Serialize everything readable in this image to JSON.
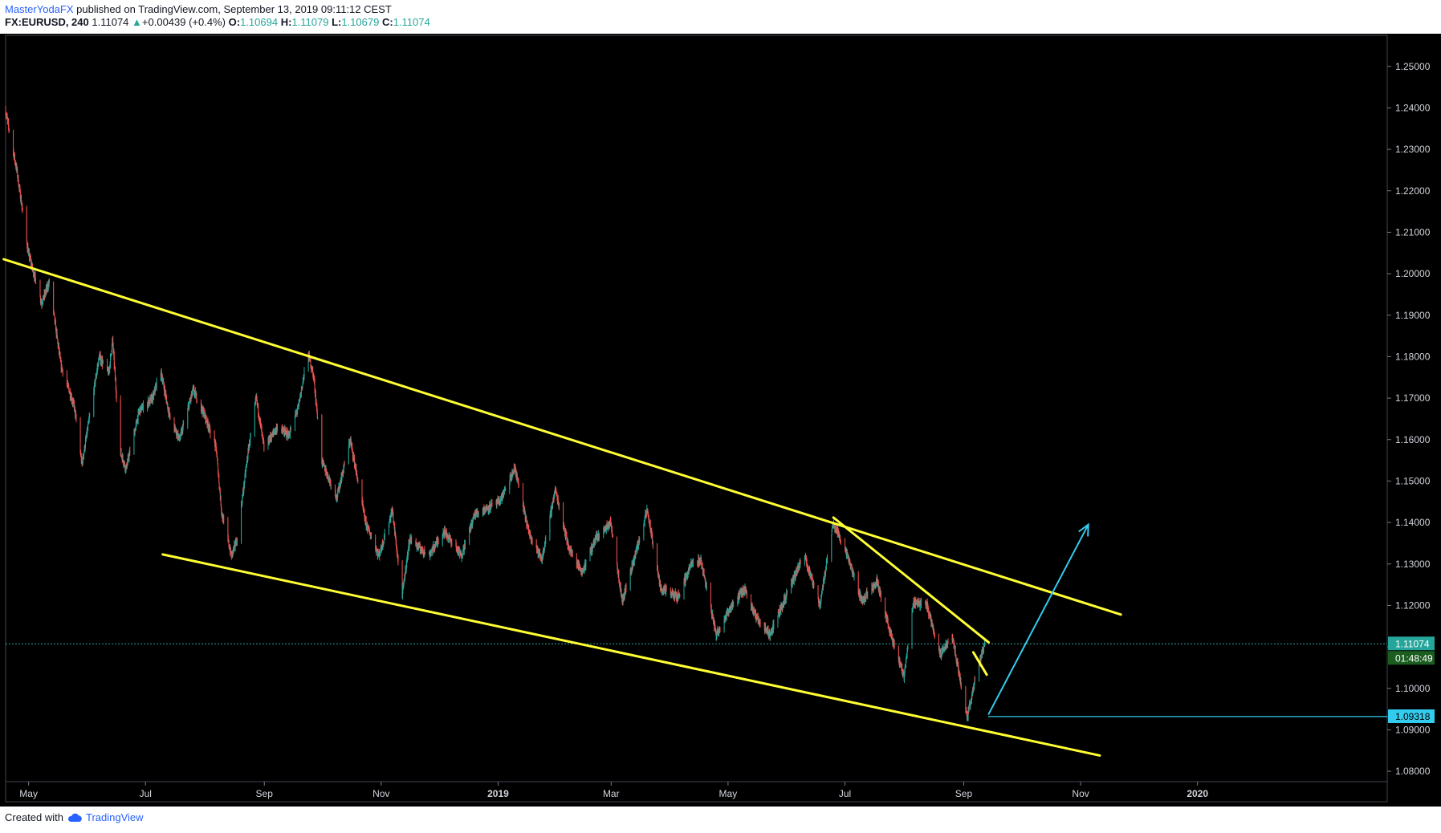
{
  "header": {
    "author": "MasterYodaFX",
    "published_text": " published on TradingView.com, September 13, 2019 09:11:12 CEST",
    "symbol": "FX:EURUSD, 240",
    "last": "1.11074",
    "change": "+0.00439 (+0.4%)",
    "open_label": "O:",
    "open": "1.10694",
    "high_label": "H:",
    "high": "1.11079",
    "low_label": "L:",
    "low": "1.10679",
    "close_label": "C:",
    "close": "1.11074"
  },
  "footer": {
    "created_with": "Created with",
    "brand": "TradingView",
    "logo_icon": "tradingview-cloud-icon"
  },
  "colors": {
    "background": "#000000",
    "candle_up": "#26a69a",
    "candle_down": "#ef5350",
    "trendline": "#ffff33",
    "projection": "#33ccee",
    "price_line": "#26a69a",
    "axis_text": "#d1d4dc"
  },
  "chart_data": {
    "type": "candlestick",
    "y_axis": {
      "ticks": [
        "1.25000",
        "1.24000",
        "1.23000",
        "1.22000",
        "1.21000",
        "1.20000",
        "1.19000",
        "1.18000",
        "1.17000",
        "1.16000",
        "1.15000",
        "1.14000",
        "1.13000",
        "1.12000",
        "1.11000",
        "1.10000",
        "1.09000",
        "1.08000"
      ],
      "range": [
        1.0775,
        1.2575
      ]
    },
    "x_axis": {
      "range": [
        "2018-04-19",
        "2020-04-09"
      ],
      "ticks": [
        {
          "label": "May",
          "date": "2018-05-01"
        },
        {
          "label": "Jul",
          "date": "2018-07-01"
        },
        {
          "label": "Sep",
          "date": "2018-09-01"
        },
        {
          "label": "Nov",
          "date": "2018-11-01"
        },
        {
          "label": "2019",
          "date": "2019-01-01",
          "bold": true
        },
        {
          "label": "Mar",
          "date": "2019-03-01"
        },
        {
          "label": "May",
          "date": "2019-05-01"
        },
        {
          "label": "Jul",
          "date": "2019-07-01"
        },
        {
          "label": "Sep",
          "date": "2019-09-01"
        },
        {
          "label": "Nov",
          "date": "2019-11-01"
        },
        {
          "label": "2020",
          "date": "2020-01-01",
          "bold": true
        }
      ]
    },
    "price_path": [
      {
        "date": "2018-04-19",
        "price": 1.2395
      },
      {
        "date": "2018-04-25",
        "price": 1.225
      },
      {
        "date": "2018-05-01",
        "price": 1.205
      },
      {
        "date": "2018-05-08",
        "price": 1.193
      },
      {
        "date": "2018-05-12",
        "price": 1.198
      },
      {
        "date": "2018-05-18",
        "price": 1.178
      },
      {
        "date": "2018-05-25",
        "price": 1.168
      },
      {
        "date": "2018-05-29",
        "price": 1.154
      },
      {
        "date": "2018-06-07",
        "price": 1.18
      },
      {
        "date": "2018-06-12",
        "price": 1.176
      },
      {
        "date": "2018-06-14",
        "price": 1.184
      },
      {
        "date": "2018-06-18",
        "price": 1.157
      },
      {
        "date": "2018-06-21",
        "price": 1.153
      },
      {
        "date": "2018-06-28",
        "price": 1.167
      },
      {
        "date": "2018-07-05",
        "price": 1.17
      },
      {
        "date": "2018-07-09",
        "price": 1.177
      },
      {
        "date": "2018-07-14",
        "price": 1.165
      },
      {
        "date": "2018-07-19",
        "price": 1.16
      },
      {
        "date": "2018-07-26",
        "price": 1.172
      },
      {
        "date": "2018-08-01",
        "price": 1.166
      },
      {
        "date": "2018-08-07",
        "price": 1.158
      },
      {
        "date": "2018-08-10",
        "price": 1.142
      },
      {
        "date": "2018-08-15",
        "price": 1.132
      },
      {
        "date": "2018-08-18",
        "price": 1.136
      },
      {
        "date": "2018-08-24",
        "price": 1.158
      },
      {
        "date": "2018-08-28",
        "price": 1.17
      },
      {
        "date": "2018-09-01",
        "price": 1.158
      },
      {
        "date": "2018-09-08",
        "price": 1.163
      },
      {
        "date": "2018-09-14",
        "price": 1.161
      },
      {
        "date": "2018-09-19",
        "price": 1.168
      },
      {
        "date": "2018-09-24",
        "price": 1.181
      },
      {
        "date": "2018-09-27",
        "price": 1.175
      },
      {
        "date": "2018-10-01",
        "price": 1.155
      },
      {
        "date": "2018-10-09",
        "price": 1.146
      },
      {
        "date": "2018-10-16",
        "price": 1.16
      },
      {
        "date": "2018-10-24",
        "price": 1.14
      },
      {
        "date": "2018-10-31",
        "price": 1.132
      },
      {
        "date": "2018-11-07",
        "price": 1.143
      },
      {
        "date": "2018-11-12",
        "price": 1.122
      },
      {
        "date": "2018-11-16",
        "price": 1.136
      },
      {
        "date": "2018-11-26",
        "price": 1.132
      },
      {
        "date": "2018-12-04",
        "price": 1.138
      },
      {
        "date": "2018-12-13",
        "price": 1.132
      },
      {
        "date": "2018-12-20",
        "price": 1.142
      },
      {
        "date": "2019-01-02",
        "price": 1.145
      },
      {
        "date": "2019-01-10",
        "price": 1.153
      },
      {
        "date": "2019-01-17",
        "price": 1.138
      },
      {
        "date": "2019-01-24",
        "price": 1.131
      },
      {
        "date": "2019-01-31",
        "price": 1.148
      },
      {
        "date": "2019-02-07",
        "price": 1.134
      },
      {
        "date": "2019-02-14",
        "price": 1.128
      },
      {
        "date": "2019-02-21",
        "price": 1.136
      },
      {
        "date": "2019-03-01",
        "price": 1.14
      },
      {
        "date": "2019-03-07",
        "price": 1.121
      },
      {
        "date": "2019-03-13",
        "price": 1.131
      },
      {
        "date": "2019-03-20",
        "price": 1.143
      },
      {
        "date": "2019-03-27",
        "price": 1.124
      },
      {
        "date": "2019-04-05",
        "price": 1.122
      },
      {
        "date": "2019-04-12",
        "price": 1.13
      },
      {
        "date": "2019-04-17",
        "price": 1.131
      },
      {
        "date": "2019-04-25",
        "price": 1.113
      },
      {
        "date": "2019-05-03",
        "price": 1.12
      },
      {
        "date": "2019-05-10",
        "price": 1.124
      },
      {
        "date": "2019-05-16",
        "price": 1.117
      },
      {
        "date": "2019-05-23",
        "price": 1.113
      },
      {
        "date": "2019-06-03",
        "price": 1.125
      },
      {
        "date": "2019-06-10",
        "price": 1.132
      },
      {
        "date": "2019-06-18",
        "price": 1.12
      },
      {
        "date": "2019-06-25",
        "price": 1.14
      },
      {
        "date": "2019-07-01",
        "price": 1.134
      },
      {
        "date": "2019-07-10",
        "price": 1.121
      },
      {
        "date": "2019-07-18",
        "price": 1.126
      },
      {
        "date": "2019-07-25",
        "price": 1.113
      },
      {
        "date": "2019-08-01",
        "price": 1.103
      },
      {
        "date": "2019-08-06",
        "price": 1.121
      },
      {
        "date": "2019-08-13",
        "price": 1.12
      },
      {
        "date": "2019-08-20",
        "price": 1.108
      },
      {
        "date": "2019-08-26",
        "price": 1.113
      },
      {
        "date": "2019-09-03",
        "price": 1.093
      },
      {
        "date": "2019-09-08",
        "price": 1.104
      },
      {
        "date": "2019-09-12",
        "price": 1.1107
      }
    ],
    "lines": [
      {
        "name": "channel-upper",
        "color": "yellow",
        "from": {
          "date": "2018-04-18",
          "price": 1.2035
        },
        "to": {
          "date": "2019-11-22",
          "price": 1.1178
        }
      },
      {
        "name": "channel-lower",
        "color": "yellow",
        "from": {
          "date": "2018-07-10",
          "price": 1.1323
        },
        "to": {
          "date": "2019-11-11",
          "price": 1.0838
        }
      },
      {
        "name": "wedge-upper",
        "color": "yellow",
        "from": {
          "date": "2019-06-25",
          "price": 1.1412
        },
        "to": {
          "date": "2019-09-14",
          "price": 1.1111
        }
      },
      {
        "name": "flag-line",
        "color": "yellow",
        "from": {
          "date": "2019-09-06",
          "price": 1.1087
        },
        "to": {
          "date": "2019-09-13",
          "price": 1.1033
        }
      },
      {
        "name": "projection-arrow",
        "color": "cyan",
        "from": {
          "date": "2019-09-14",
          "price": 1.0938
        },
        "to": {
          "date": "2019-11-05",
          "price": 1.1395
        }
      },
      {
        "name": "support-line",
        "color": "cyan",
        "from": {
          "date": "2019-09-14",
          "price": 1.0932
        },
        "to": {
          "date": "2020-04-09",
          "price": 1.0932
        }
      }
    ],
    "price_labels": [
      {
        "value": "1.11074",
        "price": 1.11074,
        "color": "green"
      },
      {
        "value": "01:48:49",
        "color": "green"
      },
      {
        "value": "1.09318",
        "price": 1.09318,
        "color": "cyan"
      }
    ]
  }
}
